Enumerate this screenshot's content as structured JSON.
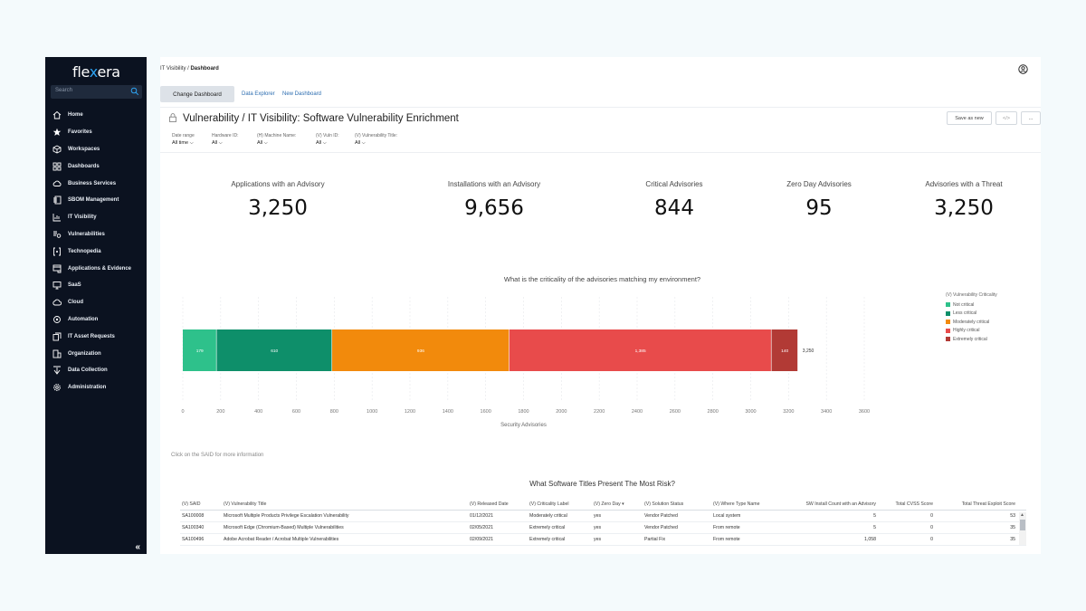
{
  "app": {
    "logo_text_a": "fle",
    "logo_text_b": "x",
    "logo_text_c": "era"
  },
  "sidebar": {
    "search_placeholder": "Search",
    "items": [
      {
        "label": "Home",
        "icon": "home-icon"
      },
      {
        "label": "Favorites",
        "icon": "star-icon"
      },
      {
        "label": "Workspaces",
        "icon": "cube-icon"
      },
      {
        "label": "Dashboards",
        "icon": "grid-icon"
      },
      {
        "label": "Business Services",
        "icon": "cloud-gear-icon"
      },
      {
        "label": "SBOM Management",
        "icon": "sbom-icon"
      },
      {
        "label": "IT Visibility",
        "icon": "chart-icon"
      },
      {
        "label": "Vulnerabilities",
        "icon": "bug-icon"
      },
      {
        "label": "Technopedia",
        "icon": "brackets-icon"
      },
      {
        "label": "Applications & Evidence",
        "icon": "apps-icon"
      },
      {
        "label": "SaaS",
        "icon": "monitor-icon"
      },
      {
        "label": "Cloud",
        "icon": "cloud-icon"
      },
      {
        "label": "Automation",
        "icon": "automation-icon"
      },
      {
        "label": "IT Asset Requests",
        "icon": "request-icon"
      },
      {
        "label": "Organization",
        "icon": "org-icon"
      },
      {
        "label": "Data Collection",
        "icon": "collection-icon"
      },
      {
        "label": "Administration",
        "icon": "gear-icon"
      }
    ],
    "collapse_label": "«"
  },
  "header": {
    "breadcrumb_root": "IT Visibility",
    "breadcrumb_sep": " / ",
    "breadcrumb_current": "Dashboard"
  },
  "tabs": {
    "active": "Change Dashboard",
    "links": [
      "Data Explorer",
      "New Dashboard"
    ]
  },
  "page": {
    "title": "Vulnerability / IT Visibility: Software Vulnerability Enrichment",
    "buttons": [
      "Save as new",
      "</>",
      "..."
    ]
  },
  "filters": [
    {
      "label": "Date range",
      "value": "All time"
    },
    {
      "label": "Hardware ID:",
      "value": "All"
    },
    {
      "label": "(H) Machine Name:",
      "value": "All"
    },
    {
      "label": "(V) Vuln ID:",
      "value": "All"
    },
    {
      "label": "(V) Vulnerability Title:",
      "value": "All"
    }
  ],
  "kpis": [
    {
      "label": "Applications with an Advisory",
      "value": "3,250"
    },
    {
      "label": "Installations with an Advisory",
      "value": "9,656"
    },
    {
      "label": "Critical Advisories",
      "value": "844"
    },
    {
      "label": "Zero Day Advisories",
      "value": "95"
    },
    {
      "label": "Advisories with a Threat",
      "value": "3,250"
    }
  ],
  "chart_data": {
    "type": "bar",
    "orientation": "horizontal-stacked",
    "title": "What is the criticality of the advisories matching my environment?",
    "xlabel": "Security Advisories",
    "xlim": [
      0,
      3600
    ],
    "xticks": [
      0,
      200,
      400,
      600,
      800,
      1000,
      1200,
      1400,
      1600,
      1800,
      2000,
      2200,
      2400,
      2600,
      2800,
      3000,
      3200,
      3400,
      3600
    ],
    "total_label": "3,250",
    "legend_title": "(V) Vulnerability Criticality",
    "legend_position": "right",
    "series": [
      {
        "name": "Not critical",
        "value": 179,
        "label": "179",
        "color": "#2ec18b"
      },
      {
        "name": "Less critical",
        "value": 610,
        "label": "610",
        "color": "#0e8f6a"
      },
      {
        "name": "Moderately critical",
        "value": 936,
        "label": "936",
        "color": "#f28a0c"
      },
      {
        "name": "Highly critical",
        "value": 1385,
        "label": "1,385",
        "color": "#e84b4b"
      },
      {
        "name": "Extremely critical",
        "value": 140,
        "label": "140",
        "color": "#b23a35"
      }
    ]
  },
  "hint": "Click on the SAID for more information",
  "table": {
    "title": "What Software Titles Present The Most Risk?",
    "columns": [
      "(V) SAID",
      "(V) Vulnerability Title",
      "(V) Released Date",
      "(V) Criticality Label",
      "(V) Zero Day ▾",
      "(V) Solution Status",
      "(V) Where Type Name",
      "SW Install Count with an Advisory",
      "Total CVSS Score",
      "Total Threat Exploit Score"
    ],
    "rows": [
      [
        "SA100008",
        "Microsoft Multiple Products Privilege Escalation Vulnerability",
        "01/12/2021",
        "Moderately critical",
        "yes",
        "Vendor Patched",
        "Local system",
        "5",
        "0",
        "53"
      ],
      [
        "SA100340",
        "Microsoft Edge (Chromium-Based) Multiple Vulnerabilities",
        "02/05/2021",
        "Extremely critical",
        "yes",
        "Vendor Patched",
        "From remote",
        "5",
        "0",
        "35"
      ],
      [
        "SA100496",
        "Adobe Acrobat Reader / Acrobat Multiple Vulnerabilities",
        "02/09/2021",
        "Extremely critical",
        "yes",
        "Partial Fix",
        "From remote",
        "1,058",
        "0",
        "35"
      ]
    ]
  }
}
